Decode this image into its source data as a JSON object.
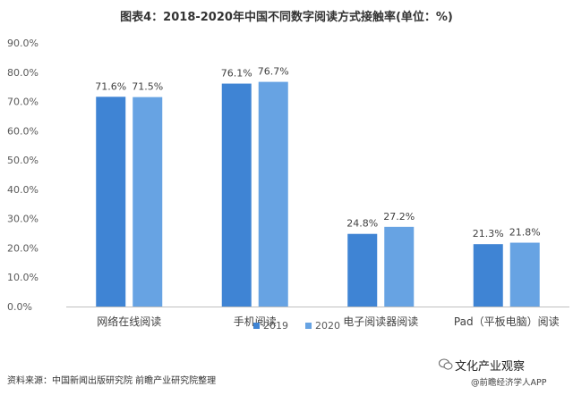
{
  "chart_data": {
    "type": "bar",
    "title": "图表4：2018-2020年中国不同数字阅读方式接触率(单位：%)",
    "categories": [
      "网络在线阅读",
      "手机阅读",
      "电子阅读器阅读",
      "Pad（平板电脑）阅读"
    ],
    "series": [
      {
        "name": "2019",
        "values": [
          71.6,
          76.1,
          24.8,
          21.3
        ],
        "labels": [
          "71.6%",
          "76.1%",
          "24.8%",
          "21.3%"
        ],
        "color": "#3F84D4"
      },
      {
        "name": "2020",
        "values": [
          71.5,
          76.7,
          27.2,
          21.8
        ],
        "labels": [
          "71.5%",
          "76.7%",
          "27.2%",
          "21.8%"
        ],
        "color": "#67A3E3"
      }
    ],
    "ylim": [
      0,
      90
    ],
    "yticks": [
      0,
      10,
      20,
      30,
      40,
      50,
      60,
      70,
      80,
      90
    ],
    "ytick_labels": [
      "0.0%",
      "10.0%",
      "20.0%",
      "30.0%",
      "40.0%",
      "50.0%",
      "60.0%",
      "70.0%",
      "80.0%",
      "90.0%"
    ],
    "legend_position": "bottom",
    "grid": false
  },
  "footer": {
    "source": "资料来源：中国新闻出版研究院 前瞻产业研究院整理",
    "wechat_name": "文化产业观察",
    "wechat_sub": "@前瞻经济学人APP"
  }
}
